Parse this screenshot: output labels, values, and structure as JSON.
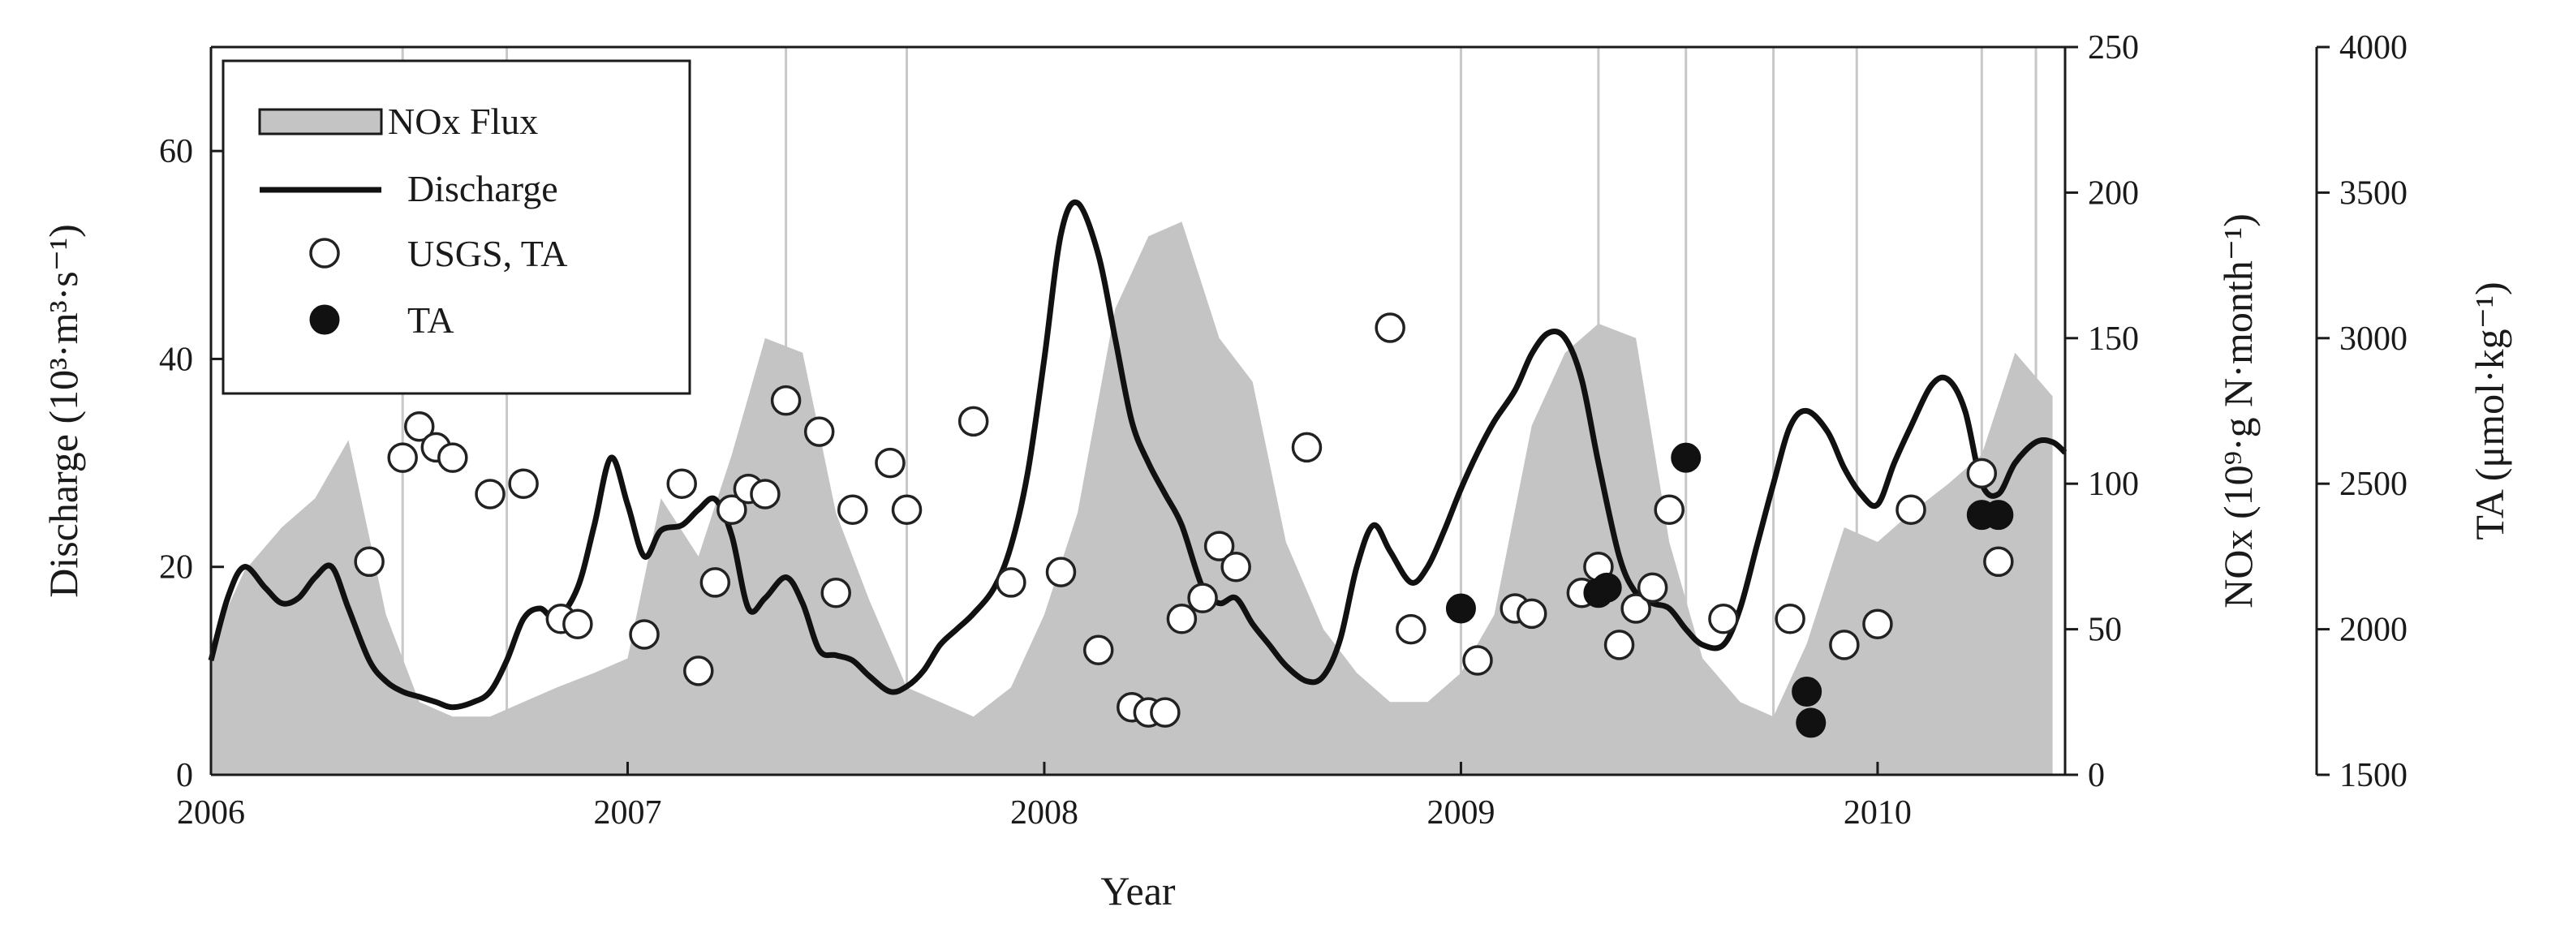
{
  "chart_data": {
    "type": "line",
    "xlabel": "Year",
    "x_ticks": [
      "2006",
      "2007",
      "2008",
      "2009",
      "2010"
    ],
    "xlim": [
      2006.0,
      2010.45
    ],
    "axes": {
      "left": {
        "label": "Discharge (10³·m³·s⁻¹)",
        "range": [
          0,
          70
        ],
        "ticks": [
          "0",
          "20",
          "40",
          "60"
        ]
      },
      "right1": {
        "label": "NOx  (10⁹·g N·month⁻¹)",
        "range": [
          0,
          250
        ],
        "ticks": [
          "0",
          "50",
          "100",
          "150",
          "200",
          "250"
        ]
      },
      "right2": {
        "label": "TA (μmol·kg⁻¹)",
        "range": [
          1500,
          4000
        ],
        "ticks": [
          "1500",
          "2000",
          "2500",
          "3000",
          "3500",
          "4000"
        ]
      }
    },
    "legend": {
      "position": "top-left",
      "entries": [
        "NOx Flux",
        "Discharge",
        "USGS, TA",
        "TA"
      ]
    },
    "gridlines_x": [
      2006.46,
      2006.71,
      2007.38,
      2007.67,
      2009.0,
      2009.33,
      2009.54,
      2009.75,
      2009.95,
      2010.25,
      2010.38
    ],
    "series": [
      {
        "name": "NOx Flux",
        "kind": "area",
        "axis": "right1",
        "color": "#c4c4c4",
        "x": [
          2006.0,
          2006.08,
          2006.17,
          2006.25,
          2006.33,
          2006.42,
          2006.5,
          2006.58,
          2006.67,
          2006.75,
          2006.83,
          2006.92,
          2007.0,
          2007.08,
          2007.17,
          2007.25,
          2007.33,
          2007.42,
          2007.5,
          2007.58,
          2007.67,
          2007.75,
          2007.83,
          2007.92,
          2008.0,
          2008.08,
          2008.17,
          2008.25,
          2008.33,
          2008.42,
          2008.5,
          2008.58,
          2008.67,
          2008.75,
          2008.83,
          2008.92,
          2009.0,
          2009.08,
          2009.17,
          2009.25,
          2009.33,
          2009.42,
          2009.5,
          2009.58,
          2009.67,
          2009.75,
          2009.83,
          2009.92,
          2010.0,
          2010.08,
          2010.17,
          2010.25,
          2010.33,
          2010.42
        ],
        "values": [
          45,
          70,
          85,
          95,
          115,
          55,
          25,
          20,
          20,
          25,
          30,
          35,
          40,
          95,
          75,
          110,
          150,
          145,
          90,
          60,
          30,
          25,
          20,
          30,
          55,
          90,
          160,
          185,
          190,
          150,
          135,
          80,
          50,
          35,
          25,
          25,
          35,
          55,
          120,
          145,
          155,
          150,
          80,
          40,
          25,
          20,
          45,
          85,
          80,
          90,
          100,
          110,
          145,
          130
        ]
      },
      {
        "name": "Discharge",
        "kind": "line",
        "axis": "left",
        "color": "#111111",
        "x": [
          2006.0,
          2006.04,
          2006.08,
          2006.13,
          2006.17,
          2006.21,
          2006.25,
          2006.29,
          2006.33,
          2006.38,
          2006.42,
          2006.46,
          2006.5,
          2006.54,
          2006.58,
          2006.63,
          2006.67,
          2006.71,
          2006.75,
          2006.79,
          2006.83,
          2006.88,
          2006.92,
          2006.96,
          2007.0,
          2007.04,
          2007.08,
          2007.13,
          2007.17,
          2007.21,
          2007.25,
          2007.29,
          2007.33,
          2007.38,
          2007.42,
          2007.46,
          2007.5,
          2007.54,
          2007.58,
          2007.63,
          2007.67,
          2007.71,
          2007.75,
          2007.79,
          2007.83,
          2007.88,
          2007.92,
          2007.96,
          2008.0,
          2008.04,
          2008.08,
          2008.13,
          2008.17,
          2008.21,
          2008.25,
          2008.29,
          2008.33,
          2008.38,
          2008.42,
          2008.46,
          2008.5,
          2008.54,
          2008.58,
          2008.63,
          2008.67,
          2008.71,
          2008.75,
          2008.79,
          2008.83,
          2008.88,
          2008.92,
          2008.96,
          2009.0,
          2009.04,
          2009.08,
          2009.13,
          2009.17,
          2009.21,
          2009.25,
          2009.29,
          2009.33,
          2009.38,
          2009.42,
          2009.46,
          2009.5,
          2009.54,
          2009.58,
          2009.63,
          2009.67,
          2009.71,
          2009.75,
          2009.79,
          2009.83,
          2009.88,
          2009.92,
          2009.96,
          2010.0,
          2010.04,
          2010.08,
          2010.13,
          2010.17,
          2010.21,
          2010.25,
          2010.29,
          2010.33,
          2010.38,
          2010.42,
          2010.45
        ],
        "values": [
          11,
          17,
          20,
          18,
          16.5,
          17,
          19,
          20,
          16,
          11,
          9,
          8,
          7.5,
          7,
          6.5,
          7,
          8,
          11,
          15,
          16,
          15,
          18,
          24,
          30.5,
          26,
          21,
          23.5,
          24,
          25.5,
          26.5,
          23,
          16,
          17,
          19,
          16.5,
          12,
          11.5,
          11,
          9.5,
          8,
          8.5,
          10,
          12.5,
          14,
          15.5,
          18,
          22,
          29,
          40,
          52,
          55,
          50,
          42,
          34,
          30,
          27,
          24,
          18,
          16.5,
          17,
          14.5,
          12.5,
          10.5,
          9,
          9.5,
          13,
          20,
          24,
          21.5,
          18.5,
          20,
          23.5,
          27.5,
          31,
          34,
          37,
          40.5,
          42.5,
          42,
          38,
          30,
          21,
          17.5,
          16.5,
          16,
          14,
          12.5,
          12.5,
          16,
          22,
          28,
          33.5,
          35,
          33,
          29.5,
          27,
          26,
          30,
          33.5,
          37.5,
          38,
          35,
          28,
          27,
          30,
          32,
          32,
          31
        ]
      },
      {
        "name": "USGS, TA",
        "kind": "scatter",
        "axis": "left",
        "marker": "open",
        "x": [
          2006.38,
          2006.46,
          2006.5,
          2006.54,
          2006.58,
          2006.67,
          2006.75,
          2006.84,
          2006.88,
          2007.04,
          2007.13,
          2007.17,
          2007.21,
          2007.25,
          2007.29,
          2007.33,
          2007.38,
          2007.46,
          2007.5,
          2007.54,
          2007.63,
          2007.67,
          2007.83,
          2007.92,
          2008.04,
          2008.13,
          2008.21,
          2008.25,
          2008.29,
          2008.33,
          2008.38,
          2008.42,
          2008.46,
          2008.63,
          2008.83,
          2008.88,
          2009.04,
          2009.13,
          2009.17,
          2009.29,
          2009.33,
          2009.38,
          2009.42,
          2009.46,
          2009.5,
          2009.63,
          2009.79,
          2009.92,
          2010.0,
          2010.08,
          2010.25,
          2010.29
        ],
        "values": [
          20.5,
          30.5,
          33.5,
          31.5,
          30.5,
          27,
          28,
          15,
          14.5,
          13.5,
          28,
          10,
          18.5,
          25.5,
          27.5,
          27,
          36,
          33,
          17.5,
          25.5,
          30,
          25.5,
          34,
          18.5,
          19.5,
          12,
          6.5,
          6,
          6,
          15,
          17,
          22,
          20,
          31.5,
          43,
          14,
          11,
          16,
          15.5,
          17.5,
          20,
          12.5,
          16,
          18,
          25.5,
          15,
          15,
          12.5,
          14.5,
          25.5,
          29,
          20.5
        ]
      },
      {
        "name": "TA",
        "kind": "scatter",
        "axis": "left",
        "marker": "filled",
        "x": [
          2009.0,
          2009.33,
          2009.35,
          2009.54,
          2009.83,
          2009.84,
          2010.25,
          2010.29
        ],
        "values": [
          16,
          17.5,
          18,
          30.5,
          8,
          5,
          25,
          25
        ]
      }
    ]
  }
}
